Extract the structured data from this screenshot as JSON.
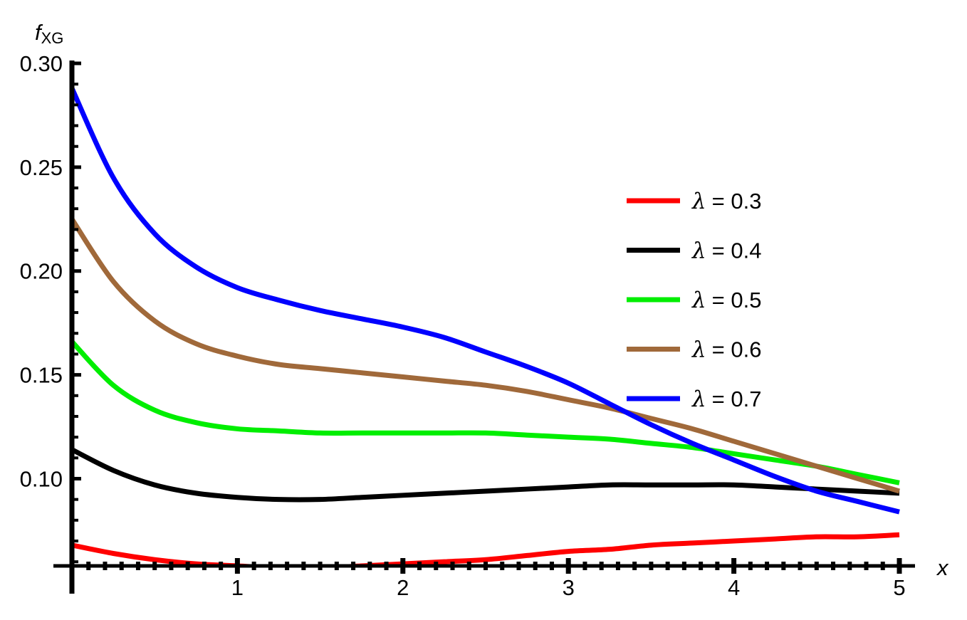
{
  "chart_data": {
    "type": "line",
    "xlabel": "x",
    "ylabel": {
      "main": "f",
      "sub": "XG"
    },
    "xlim": [
      0,
      5
    ],
    "ylim": [
      0.058,
      0.3
    ],
    "x_origin_value": 0.058,
    "xticks": [
      1,
      2,
      3,
      4,
      5
    ],
    "xtick_labels": [
      "1",
      "2",
      "3",
      "4",
      "5"
    ],
    "yticks": [
      0.1,
      0.15,
      0.2,
      0.25,
      0.3
    ],
    "ytick_labels": [
      "0.10",
      "0.15",
      "0.20",
      "0.25",
      "0.30"
    ],
    "grid": false,
    "legend_position": "right",
    "x": [
      0,
      0.25,
      0.5,
      0.75,
      1,
      1.25,
      1.5,
      1.75,
      2,
      2.25,
      2.5,
      2.75,
      3,
      3.25,
      3.5,
      3.75,
      4,
      4.25,
      4.5,
      4.75,
      5
    ],
    "series": [
      {
        "name": "λ = 0.3",
        "legend_symbol": "λ",
        "legend_value": "= 0.3",
        "color": "#ff0000",
        "values": [
          0.068,
          0.064,
          0.061,
          0.059,
          0.058,
          0.057,
          0.057,
          0.058,
          0.059,
          0.06,
          0.061,
          0.063,
          0.065,
          0.066,
          0.068,
          0.069,
          0.07,
          0.071,
          0.072,
          0.072,
          0.073
        ]
      },
      {
        "name": "λ = 0.4",
        "legend_symbol": "λ",
        "legend_value": "= 0.4",
        "color": "#000000",
        "values": [
          0.114,
          0.104,
          0.097,
          0.093,
          0.091,
          0.09,
          0.09,
          0.091,
          0.092,
          0.093,
          0.094,
          0.095,
          0.096,
          0.097,
          0.097,
          0.097,
          0.097,
          0.096,
          0.095,
          0.094,
          0.093
        ]
      },
      {
        "name": "λ = 0.5",
        "legend_symbol": "λ",
        "legend_value": "= 0.5",
        "color": "#00ee00",
        "values": [
          0.166,
          0.145,
          0.133,
          0.127,
          0.124,
          0.123,
          0.122,
          0.122,
          0.122,
          0.122,
          0.122,
          0.121,
          0.12,
          0.119,
          0.117,
          0.115,
          0.112,
          0.109,
          0.106,
          0.102,
          0.098
        ]
      },
      {
        "name": "λ = 0.6",
        "legend_symbol": "λ",
        "legend_value": "= 0.6",
        "color": "#a0693a",
        "values": [
          0.225,
          0.195,
          0.176,
          0.165,
          0.159,
          0.155,
          0.153,
          0.151,
          0.149,
          0.147,
          0.145,
          0.142,
          0.138,
          0.134,
          0.129,
          0.124,
          0.118,
          0.112,
          0.106,
          0.1,
          0.094
        ]
      },
      {
        "name": "λ = 0.7",
        "legend_symbol": "λ",
        "legend_value": "= 0.7",
        "color": "#0000ff",
        "values": [
          0.288,
          0.245,
          0.218,
          0.202,
          0.192,
          0.186,
          0.181,
          0.177,
          0.173,
          0.168,
          0.161,
          0.154,
          0.146,
          0.136,
          0.126,
          0.117,
          0.109,
          0.101,
          0.094,
          0.089,
          0.084
        ]
      }
    ]
  }
}
